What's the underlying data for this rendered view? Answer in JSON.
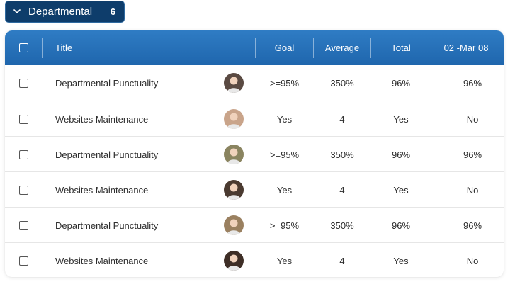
{
  "group": {
    "name": "Departmental",
    "count": "6"
  },
  "table": {
    "columns": {
      "title": "Title",
      "goal": "Goal",
      "average": "Average",
      "total": "Total",
      "date": "02 -Mar 08"
    },
    "rows": [
      {
        "title": "Departmental Punctuality",
        "goal": ">=95%",
        "average": "350%",
        "total": "96%",
        "date": "96%",
        "avatar_color": "#5a4a42",
        "avatar_icon": "person-avatar-icon"
      },
      {
        "title": "Websites Maintenance",
        "goal": "Yes",
        "average": "4",
        "total": "Yes",
        "date": "No",
        "avatar_color": "#c9a48a",
        "avatar_icon": "person-avatar-icon"
      },
      {
        "title": "Departmental Punctuality",
        "goal": ">=95%",
        "average": "350%",
        "total": "96%",
        "date": "96%",
        "avatar_color": "#8a8460",
        "avatar_icon": "person-avatar-icon"
      },
      {
        "title": "Websites Maintenance",
        "goal": "Yes",
        "average": "4",
        "total": "Yes",
        "date": "No",
        "avatar_color": "#4a3a30",
        "avatar_icon": "person-avatar-icon"
      },
      {
        "title": "Departmental Punctuality",
        "goal": ">=95%",
        "average": "350%",
        "total": "96%",
        "date": "96%",
        "avatar_color": "#9a8060",
        "avatar_icon": "person-avatar-icon"
      },
      {
        "title": "Websites Maintenance",
        "goal": "Yes",
        "average": "4",
        "total": "Yes",
        "date": "No",
        "avatar_color": "#3e2e26",
        "avatar_icon": "person-avatar-icon"
      }
    ]
  },
  "colors": {
    "header_top": "#2f7cc4",
    "header_bottom": "#1f66ad",
    "pill_bg": "#0e3d6b"
  }
}
